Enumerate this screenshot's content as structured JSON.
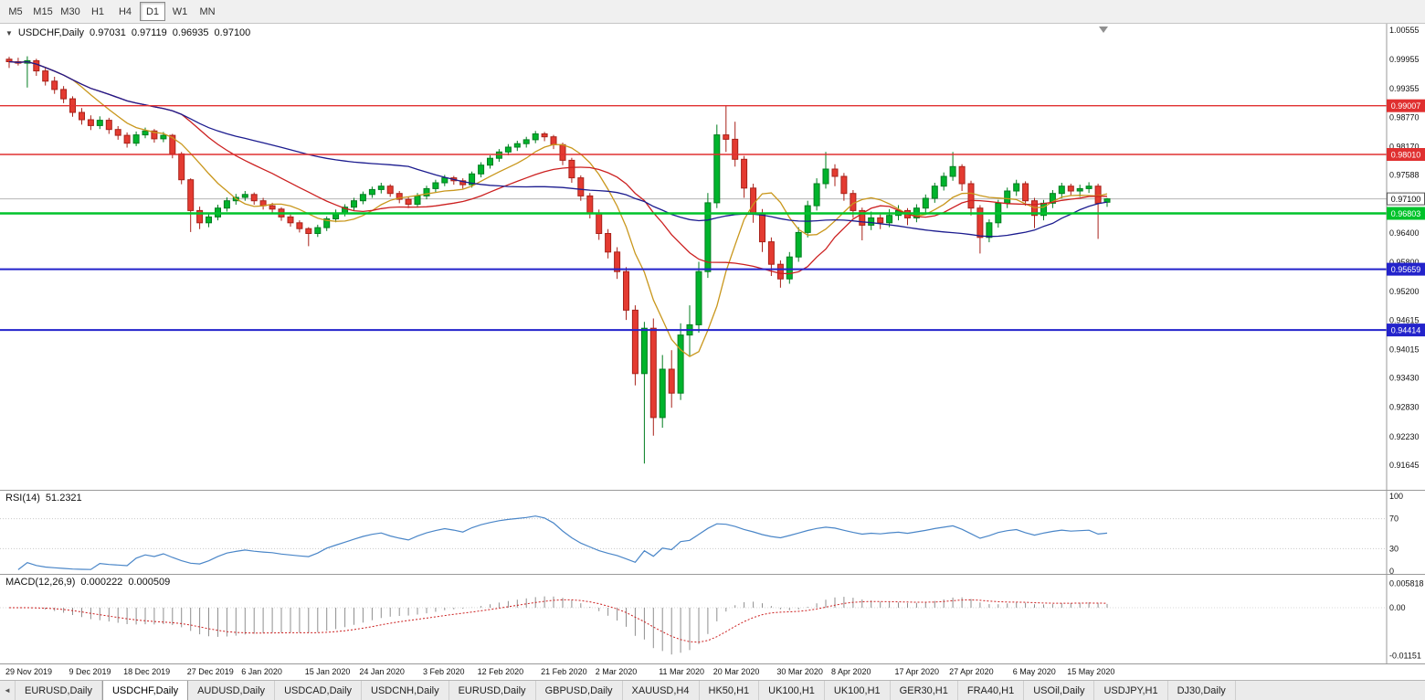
{
  "toolbar": {
    "timeframes": [
      "M5",
      "M15",
      "M30",
      "H1",
      "H4",
      "D1",
      "W1",
      "MN"
    ],
    "active_timeframe": "D1"
  },
  "icons": {
    "dropdown": "▼",
    "tab_scroll_left": "◄"
  },
  "main_chart": {
    "symbol": "USDCHF,Daily",
    "open": "0.97031",
    "high": "0.97119",
    "low": "0.96935",
    "close": "0.97100"
  },
  "rsi_panel": {
    "title": "RSI(14)",
    "value": "51.2321",
    "axis_ticks": [
      "100",
      "70",
      "30",
      "0"
    ]
  },
  "macd_panel": {
    "title": "MACD(12,26,9)",
    "value_main": "0.000222",
    "value_signal": "0.000509",
    "axis_ticks": [
      "0.005818",
      "0.00",
      "-0.01151"
    ]
  },
  "tabs": {
    "active_index": 1,
    "items": [
      "EURUSD,Daily",
      "USDCHF,Daily",
      "AUDUSD,Daily",
      "USDCAD,Daily",
      "USDCNH,Daily",
      "EURUSD,Daily",
      "GBPUSD,Daily",
      "XAUUSD,H4",
      "HK50,H1",
      "UK100,H1",
      "UK100,H1",
      "GER30,H1",
      "FRA40,H1",
      "USOil,Daily",
      "USDJPY,H1",
      "DJ30,Daily"
    ]
  },
  "chart_data": {
    "type": "candlestick",
    "symbol": "USDCHF",
    "timeframe": "D1",
    "y_range": [
      0.9114,
      1.00686
    ],
    "price_axis_ticks": [
      "1.00555",
      "0.99955",
      "0.99355",
      "0.98770",
      "0.98170",
      "0.97588",
      "0.96400",
      "0.95800",
      "0.95200",
      "0.94615",
      "0.94015",
      "0.93430",
      "0.92830",
      "0.92230",
      "0.91645"
    ],
    "current_price": 0.971,
    "current_price_label": "0.97100",
    "hlines": [
      {
        "value": 0.99007,
        "label": "0.99007",
        "color": "#e03030",
        "width": 1.4
      },
      {
        "value": 0.9801,
        "label": "0.98010",
        "color": "#e03030",
        "width": 1.4
      },
      {
        "value": 0.96803,
        "label": "0.96803",
        "color": "#00c32b",
        "width": 2.4
      },
      {
        "value": 0.95659,
        "label": "0.95659",
        "color": "#2323cb",
        "width": 2
      },
      {
        "value": 0.94414,
        "label": "0.94414",
        "color": "#2323cb",
        "width": 2
      }
    ],
    "moving_averages": [
      {
        "period": 8,
        "color": "#c9971c"
      },
      {
        "period": 20,
        "color": "#cc2020"
      },
      {
        "period": 45,
        "color": "#1c1c8f"
      }
    ],
    "candle_colors": {
      "up_fill": "#00b42c",
      "up_stroke": "#007d1f",
      "down_fill": "#e43b31",
      "down_stroke": "#a8221a"
    },
    "rsi": {
      "period": 14,
      "color": "#4a86c8",
      "levels": [
        70,
        30
      ],
      "range": [
        0,
        100
      ]
    },
    "macd": {
      "fast": 12,
      "slow": 26,
      "signal_period": 9,
      "range": [
        -0.0125,
        0.0068
      ],
      "hist_color": "#8f8f8f",
      "signal_color": "#cc2020"
    },
    "date_labels": [
      "29 Nov 2019",
      "9 Dec 2019",
      "18 Dec 2019",
      "27 Dec 2019",
      "6 Jan 2020",
      "15 Jan 2020",
      "24 Jan 2020",
      "3 Feb 2020",
      "12 Feb 2020",
      "21 Feb 2020",
      "2 Mar 2020",
      "11 Mar 2020",
      "20 Mar 2020",
      "30 Mar 2020",
      "8 Apr 2020",
      "17 Apr 2020",
      "27 Apr 2020",
      "6 May 2020",
      "15 May 2020"
    ],
    "date_label_indices": [
      0,
      7,
      13,
      20,
      26,
      33,
      39,
      46,
      52,
      59,
      65,
      72,
      78,
      85,
      91,
      98,
      104,
      111,
      117
    ],
    "ohlc": [
      [
        0.9996,
        1.0001,
        0.9978,
        0.9991
      ],
      [
        0.9991,
        0.9999,
        0.9983,
        0.9988
      ],
      [
        0.9988,
        1.0002,
        0.9938,
        0.9993
      ],
      [
        0.9993,
        0.9997,
        0.9962,
        0.9972
      ],
      [
        0.9972,
        0.998,
        0.9942,
        0.9951
      ],
      [
        0.9951,
        0.996,
        0.9925,
        0.9934
      ],
      [
        0.9934,
        0.9941,
        0.9906,
        0.9915
      ],
      [
        0.9915,
        0.992,
        0.9878,
        0.9887
      ],
      [
        0.9887,
        0.9896,
        0.9862,
        0.9872
      ],
      [
        0.9872,
        0.9881,
        0.9851,
        0.986
      ],
      [
        0.986,
        0.9879,
        0.9853,
        0.9871
      ],
      [
        0.9871,
        0.9876,
        0.9843,
        0.9852
      ],
      [
        0.9852,
        0.9859,
        0.9831,
        0.984
      ],
      [
        0.984,
        0.9846,
        0.9815,
        0.9824
      ],
      [
        0.9824,
        0.9848,
        0.9818,
        0.9841
      ],
      [
        0.9841,
        0.9856,
        0.9834,
        0.9849
      ],
      [
        0.9849,
        0.9853,
        0.9825,
        0.9833
      ],
      [
        0.9833,
        0.9847,
        0.9826,
        0.984
      ],
      [
        0.984,
        0.9843,
        0.9793,
        0.9802
      ],
      [
        0.9802,
        0.9806,
        0.974,
        0.9749
      ],
      [
        0.9749,
        0.9752,
        0.9642,
        0.9686
      ],
      [
        0.9686,
        0.9694,
        0.9648,
        0.9661
      ],
      [
        0.9661,
        0.9681,
        0.9652,
        0.9673
      ],
      [
        0.9673,
        0.9698,
        0.9666,
        0.9691
      ],
      [
        0.9691,
        0.9713,
        0.9684,
        0.9706
      ],
      [
        0.9706,
        0.972,
        0.9698,
        0.9713
      ],
      [
        0.9713,
        0.9726,
        0.9706,
        0.9719
      ],
      [
        0.9719,
        0.9723,
        0.9698,
        0.9706
      ],
      [
        0.9706,
        0.9712,
        0.9688,
        0.9696
      ],
      [
        0.9696,
        0.9702,
        0.9681,
        0.9689
      ],
      [
        0.9689,
        0.9693,
        0.9665,
        0.9673
      ],
      [
        0.9673,
        0.9678,
        0.9653,
        0.9661
      ],
      [
        0.9661,
        0.9666,
        0.9641,
        0.9649
      ],
      [
        0.9649,
        0.9652,
        0.9613,
        0.9639
      ],
      [
        0.9639,
        0.9657,
        0.9632,
        0.9651
      ],
      [
        0.9651,
        0.9674,
        0.9644,
        0.9669
      ],
      [
        0.9669,
        0.9688,
        0.9662,
        0.9681
      ],
      [
        0.9681,
        0.9699,
        0.9674,
        0.9693
      ],
      [
        0.9693,
        0.9712,
        0.9686,
        0.9706
      ],
      [
        0.9706,
        0.9725,
        0.9699,
        0.9719
      ],
      [
        0.9719,
        0.9735,
        0.9712,
        0.9729
      ],
      [
        0.9729,
        0.9743,
        0.9721,
        0.9736
      ],
      [
        0.9736,
        0.974,
        0.9714,
        0.9721
      ],
      [
        0.9721,
        0.9726,
        0.9701,
        0.9709
      ],
      [
        0.9709,
        0.9714,
        0.9691,
        0.9699
      ],
      [
        0.9699,
        0.9722,
        0.9692,
        0.9716
      ],
      [
        0.9716,
        0.9737,
        0.9709,
        0.9731
      ],
      [
        0.9731,
        0.9749,
        0.9724,
        0.9743
      ],
      [
        0.9743,
        0.9759,
        0.9736,
        0.9753
      ],
      [
        0.9753,
        0.9757,
        0.9739,
        0.9747
      ],
      [
        0.9747,
        0.9752,
        0.9731,
        0.9739
      ],
      [
        0.9739,
        0.9766,
        0.9733,
        0.9761
      ],
      [
        0.9761,
        0.9785,
        0.9754,
        0.9779
      ],
      [
        0.9779,
        0.9799,
        0.9772,
        0.9793
      ],
      [
        0.9793,
        0.9812,
        0.9786,
        0.9806
      ],
      [
        0.9806,
        0.9822,
        0.9799,
        0.9816
      ],
      [
        0.9816,
        0.9829,
        0.9808,
        0.9823
      ],
      [
        0.9823,
        0.9837,
        0.9815,
        0.9831
      ],
      [
        0.9831,
        0.9849,
        0.9824,
        0.9843
      ],
      [
        0.9843,
        0.9847,
        0.9828,
        0.9837
      ],
      [
        0.9837,
        0.9841,
        0.9812,
        0.9821
      ],
      [
        0.9821,
        0.9825,
        0.9779,
        0.9789
      ],
      [
        0.9789,
        0.9794,
        0.9743,
        0.9753
      ],
      [
        0.9753,
        0.9758,
        0.9706,
        0.9716
      ],
      [
        0.9716,
        0.9722,
        0.967,
        0.9681
      ],
      [
        0.9681,
        0.9688,
        0.9626,
        0.9639
      ],
      [
        0.9639,
        0.9648,
        0.9588,
        0.9601
      ],
      [
        0.9601,
        0.9611,
        0.9546,
        0.9561
      ],
      [
        0.9561,
        0.957,
        0.9462,
        0.9482
      ],
      [
        0.9482,
        0.9492,
        0.9328,
        0.9352
      ],
      [
        0.9352,
        0.9458,
        0.9168,
        0.9445
      ],
      [
        0.9445,
        0.9465,
        0.9225,
        0.9262
      ],
      [
        0.9262,
        0.939,
        0.9241,
        0.9361
      ],
      [
        0.9361,
        0.94,
        0.9282,
        0.9312
      ],
      [
        0.9312,
        0.9455,
        0.9298,
        0.9431
      ],
      [
        0.9431,
        0.9492,
        0.9389,
        0.9452
      ],
      [
        0.9452,
        0.9581,
        0.9436,
        0.9561
      ],
      [
        0.9561,
        0.9722,
        0.9548,
        0.9702
      ],
      [
        0.9702,
        0.9862,
        0.9691,
        0.9841
      ],
      [
        0.9841,
        0.9901,
        0.9806,
        0.9832
      ],
      [
        0.9832,
        0.9868,
        0.9776,
        0.9791
      ],
      [
        0.9791,
        0.9798,
        0.9712,
        0.9732
      ],
      [
        0.9732,
        0.9741,
        0.9661,
        0.9681
      ],
      [
        0.9681,
        0.9689,
        0.9601,
        0.9622
      ],
      [
        0.9622,
        0.9631,
        0.9552,
        0.9576
      ],
      [
        0.9576,
        0.9584,
        0.9528,
        0.9546
      ],
      [
        0.9546,
        0.9601,
        0.9536,
        0.9591
      ],
      [
        0.9591,
        0.9652,
        0.9581,
        0.9641
      ],
      [
        0.9641,
        0.9706,
        0.9631,
        0.9696
      ],
      [
        0.9696,
        0.9752,
        0.9686,
        0.9741
      ],
      [
        0.9741,
        0.9806,
        0.9731,
        0.9771
      ],
      [
        0.9771,
        0.9781,
        0.9736,
        0.9756
      ],
      [
        0.9756,
        0.9763,
        0.9706,
        0.9721
      ],
      [
        0.9721,
        0.9728,
        0.9671,
        0.9686
      ],
      [
        0.9686,
        0.9692,
        0.9625,
        0.9656
      ],
      [
        0.9656,
        0.9684,
        0.9646,
        0.9671
      ],
      [
        0.9671,
        0.9678,
        0.9648,
        0.9661
      ],
      [
        0.9661,
        0.9689,
        0.9652,
        0.9676
      ],
      [
        0.9676,
        0.9697,
        0.9666,
        0.9686
      ],
      [
        0.9686,
        0.9691,
        0.9656,
        0.9671
      ],
      [
        0.9671,
        0.9699,
        0.9662,
        0.9691
      ],
      [
        0.9691,
        0.9719,
        0.9682,
        0.9711
      ],
      [
        0.9711,
        0.9743,
        0.9702,
        0.9736
      ],
      [
        0.9736,
        0.9764,
        0.9727,
        0.9756
      ],
      [
        0.9756,
        0.9806,
        0.9747,
        0.9776
      ],
      [
        0.9776,
        0.9781,
        0.9726,
        0.9741
      ],
      [
        0.9741,
        0.9747,
        0.9676,
        0.9691
      ],
      [
        0.9691,
        0.9697,
        0.9598,
        0.9631
      ],
      [
        0.9631,
        0.9668,
        0.9621,
        0.9661
      ],
      [
        0.9661,
        0.9708,
        0.9651,
        0.9701
      ],
      [
        0.9701,
        0.9733,
        0.9691,
        0.9726
      ],
      [
        0.9726,
        0.9749,
        0.9716,
        0.9741
      ],
      [
        0.9741,
        0.9746,
        0.9696,
        0.9706
      ],
      [
        0.9706,
        0.9712,
        0.965,
        0.9676
      ],
      [
        0.9676,
        0.9708,
        0.9666,
        0.9701
      ],
      [
        0.9701,
        0.9728,
        0.9691,
        0.9721
      ],
      [
        0.9721,
        0.9743,
        0.9711,
        0.9736
      ],
      [
        0.9736,
        0.9741,
        0.9716,
        0.9726
      ],
      [
        0.9726,
        0.9739,
        0.9714,
        0.9731
      ],
      [
        0.9731,
        0.9744,
        0.9722,
        0.9736
      ],
      [
        0.9736,
        0.9741,
        0.9628,
        0.9701
      ],
      [
        0.97031,
        0.97119,
        0.96935,
        0.971
      ]
    ]
  }
}
